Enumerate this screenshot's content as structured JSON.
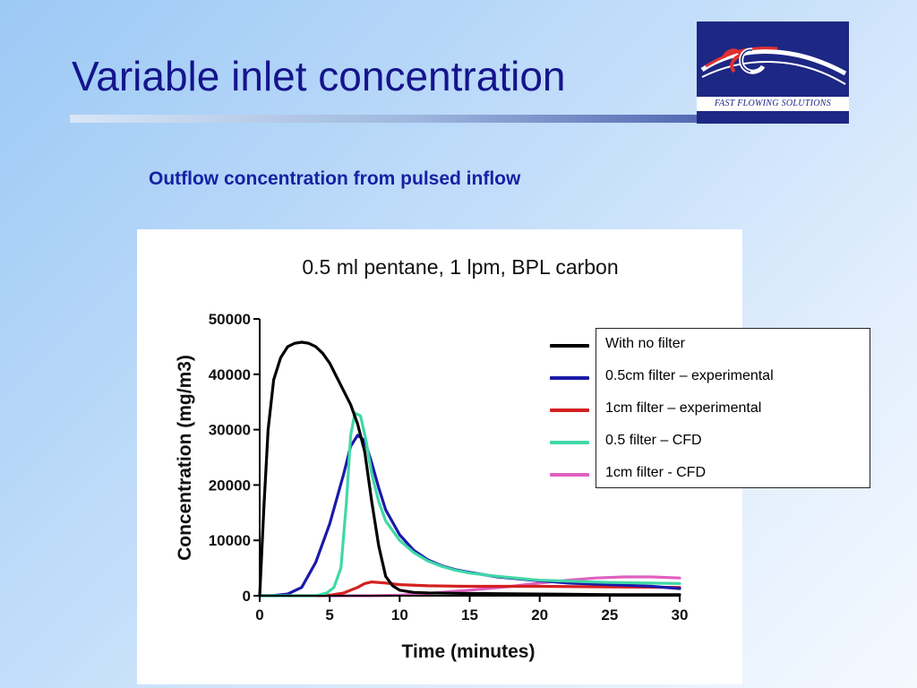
{
  "slide": {
    "title": "Variable inlet concentration",
    "subtitle": "Outflow concentration from pulsed inflow",
    "logo_text": "FAST FLOWING SOLUTIONS"
  },
  "chart_data": {
    "type": "line",
    "title": "0.5 ml pentane, 1 lpm,  BPL carbon",
    "xlabel": "Time (minutes)",
    "ylabel": "Concentration (mg/m3)",
    "xlim": [
      0,
      30
    ],
    "ylim": [
      0,
      50000
    ],
    "x_ticks": [
      "0",
      "5",
      "10",
      "15",
      "20",
      "25",
      "30"
    ],
    "y_ticks": [
      "0",
      "10000",
      "20000",
      "30000",
      "40000",
      "50000"
    ],
    "grid": false,
    "legend_position": "right",
    "series": [
      {
        "name": "With no filter",
        "color": "#000000",
        "x": [
          0,
          0.3,
          0.6,
          1,
          1.5,
          2,
          2.5,
          3,
          3.5,
          4,
          4.5,
          5,
          5.5,
          6,
          6.5,
          7,
          7.5,
          8,
          8.5,
          9,
          9.5,
          10,
          11,
          12,
          15,
          20,
          25,
          30
        ],
        "y": [
          0,
          16000,
          30000,
          39000,
          43000,
          45000,
          45600,
          45800,
          45600,
          45000,
          43800,
          42000,
          39500,
          37000,
          34500,
          31000,
          26000,
          17000,
          9000,
          3500,
          1800,
          1000,
          600,
          500,
          400,
          300,
          200,
          200
        ]
      },
      {
        "name": "0.5cm filter – experimental",
        "color": "#1a1aa8",
        "x": [
          0,
          1,
          2,
          3,
          4,
          5,
          6,
          6.5,
          7,
          7.5,
          8,
          8.5,
          9,
          10,
          11,
          12,
          13,
          14,
          15,
          17,
          20,
          22,
          25,
          28,
          30
        ],
        "y": [
          0,
          50,
          300,
          1500,
          6000,
          13000,
          22000,
          27000,
          29000,
          28000,
          24000,
          19500,
          15500,
          11000,
          8200,
          6500,
          5400,
          4700,
          4200,
          3400,
          2700,
          2300,
          2000,
          1700,
          1300
        ]
      },
      {
        "name": "1cm filter – experimental",
        "color": "#d42020",
        "x": [
          0,
          4,
          5,
          6,
          7,
          7.5,
          8,
          9,
          10,
          12,
          15,
          20,
          25,
          30
        ],
        "y": [
          0,
          0,
          100,
          500,
          1500,
          2200,
          2500,
          2300,
          2000,
          1800,
          1700,
          1700,
          1600,
          1500
        ]
      },
      {
        "name": "0.5 filter – CFD",
        "color": "#40d8a8",
        "x": [
          0,
          4,
          4.8,
          5.3,
          5.8,
          6.2,
          6.5,
          6.8,
          7.2,
          7.6,
          8,
          8.5,
          9,
          10,
          11,
          12,
          13,
          14,
          15,
          17,
          20,
          25,
          30
        ],
        "y": [
          0,
          0,
          500,
          1500,
          5000,
          17000,
          29000,
          33000,
          32500,
          28000,
          22000,
          17000,
          13500,
          10000,
          7800,
          6300,
          5300,
          4600,
          4100,
          3500,
          2800,
          2400,
          2200
        ]
      },
      {
        "name": "1cm filter - CFD",
        "color": "#e060c0",
        "x": [
          0,
          8,
          10,
          12,
          15,
          18,
          20,
          22,
          24,
          26,
          28,
          30
        ],
        "y": [
          0,
          0,
          100,
          400,
          1000,
          1700,
          2300,
          2800,
          3200,
          3400,
          3400,
          3200
        ]
      }
    ]
  }
}
